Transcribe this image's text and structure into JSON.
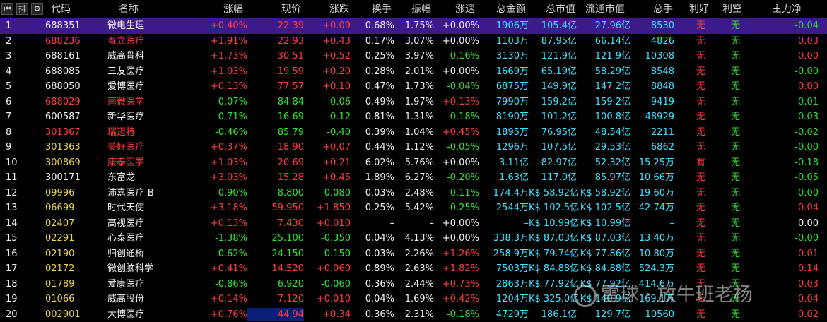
{
  "header": {
    "tools": [
      {
        "name": "first-page-icon",
        "glyph": "⏮"
      },
      {
        "name": "sort-icon",
        "glyph": "排"
      },
      {
        "name": "gear-icon",
        "glyph": "⚙"
      }
    ],
    "columns": [
      "代码",
      "名称",
      "涨幅",
      "现价",
      "涨跌",
      "换手",
      "振幅",
      "涨速",
      "总金额",
      "总市值",
      "流通市值",
      "总手",
      "利好",
      "利空",
      "主力净"
    ]
  },
  "colors": {
    "up": "#ff3c3c",
    "down": "#2fe02f",
    "selected_row": "#3c1a8c",
    "background": "#000000"
  },
  "rows": [
    {
      "idx": "1",
      "code": "688351",
      "code_color": "code-w",
      "name": "微电生理",
      "name_color": "name-w",
      "change_pct": "+0.40%",
      "dir": "red",
      "price": "22.39",
      "change": "+0.09",
      "turnover": "0.68%",
      "amplitude": "1.75%",
      "speed": "+0.00%",
      "speed_dir": "white",
      "amount": "1906万",
      "mktcap": "105.4亿",
      "float_cap": "27.96亿",
      "volume": "8530",
      "good": "无",
      "bad": "无",
      "net": "-0.04",
      "net_dir": "green",
      "selected": true
    },
    {
      "idx": "2",
      "code": "688236",
      "code_color": "code-r",
      "name": "春立医疗",
      "name_color": "name-r",
      "change_pct": "+1.91%",
      "dir": "red",
      "price": "22.93",
      "change": "+0.43",
      "turnover": "0.17%",
      "amplitude": "3.07%",
      "speed": "+0.00%",
      "speed_dir": "white",
      "amount": "1103万",
      "mktcap": "87.95亿",
      "float_cap": "66.14亿",
      "volume": "4826",
      "good": "无",
      "bad": "无",
      "net": "0.03",
      "net_dir": "red"
    },
    {
      "idx": "3",
      "code": "688161",
      "code_color": "code-w",
      "name": "威高骨科",
      "name_color": "name-w",
      "change_pct": "+1.73%",
      "dir": "red",
      "price": "30.51",
      "change": "+0.52",
      "turnover": "0.25%",
      "amplitude": "3.97%",
      "speed": "-0.16%",
      "speed_dir": "green",
      "amount": "3130万",
      "mktcap": "121.9亿",
      "float_cap": "121.9亿",
      "volume": "10308",
      "good": "无",
      "bad": "无",
      "net": "0.00",
      "net_dir": "red"
    },
    {
      "idx": "4",
      "code": "688085",
      "code_color": "code-w",
      "name": "三友医疗",
      "name_color": "name-w",
      "change_pct": "+1.03%",
      "dir": "red",
      "price": "19.59",
      "change": "+0.20",
      "turnover": "0.28%",
      "amplitude": "2.01%",
      "speed": "+0.00%",
      "speed_dir": "white",
      "amount": "1669万",
      "mktcap": "65.19亿",
      "float_cap": "58.29亿",
      "volume": "8548",
      "good": "无",
      "bad": "无",
      "net": "-0.00",
      "net_dir": "green"
    },
    {
      "idx": "5",
      "code": "688050",
      "code_color": "code-w",
      "name": "爱博医疗",
      "name_color": "name-w",
      "change_pct": "+0.13%",
      "dir": "red",
      "price": "77.57",
      "change": "+0.10",
      "turnover": "0.47%",
      "amplitude": "1.73%",
      "speed": "-0.04%",
      "speed_dir": "green",
      "amount": "6875万",
      "mktcap": "149.9亿",
      "float_cap": "147.2亿",
      "volume": "8848",
      "good": "无",
      "bad": "无",
      "net": "0.00",
      "net_dir": "red"
    },
    {
      "idx": "6",
      "code": "688029",
      "code_color": "code-r",
      "name": "南微医学",
      "name_color": "name-r",
      "change_pct": "-0.07%",
      "dir": "green",
      "price": "84.84",
      "change": "-0.06",
      "turnover": "0.49%",
      "amplitude": "1.97%",
      "speed": "+0.13%",
      "speed_dir": "red",
      "amount": "7990万",
      "mktcap": "159.2亿",
      "float_cap": "159.2亿",
      "volume": "9419",
      "good": "无",
      "bad": "无",
      "net": "-0.01",
      "net_dir": "green"
    },
    {
      "idx": "7",
      "code": "600587",
      "code_color": "code-w",
      "name": "新华医疗",
      "name_color": "name-w",
      "change_pct": "-0.71%",
      "dir": "green",
      "price": "16.69",
      "change": "-0.12",
      "turnover": "0.81%",
      "amplitude": "1.31%",
      "speed": "-0.18%",
      "speed_dir": "green",
      "amount": "8190万",
      "mktcap": "101.2亿",
      "float_cap": "100.8亿",
      "volume": "48929",
      "good": "无",
      "bad": "无",
      "net": "-0.03",
      "net_dir": "green"
    },
    {
      "idx": "8",
      "code": "301367",
      "code_color": "code-r",
      "name": "瑞迈特",
      "name_color": "name-r",
      "change_pct": "-0.46%",
      "dir": "green",
      "price": "85.79",
      "change": "-0.40",
      "turnover": "0.39%",
      "amplitude": "1.04%",
      "speed": "+0.45%",
      "speed_dir": "red",
      "amount": "1895万",
      "mktcap": "76.95亿",
      "float_cap": "48.54亿",
      "volume": "2211",
      "good": "无",
      "bad": "无",
      "net": "-0.02",
      "net_dir": "green"
    },
    {
      "idx": "9",
      "code": "301363",
      "code_color": "code-y",
      "name": "美好医疗",
      "name_color": "name-r",
      "change_pct": "+0.37%",
      "dir": "red",
      "price": "18.90",
      "change": "+0.07",
      "turnover": "0.44%",
      "amplitude": "1.12%",
      "speed": "-0.05%",
      "speed_dir": "green",
      "amount": "1296万",
      "mktcap": "107.5亿",
      "float_cap": "29.53亿",
      "volume": "6862",
      "good": "无",
      "bad": "无",
      "net": "-0.00",
      "net_dir": "green"
    },
    {
      "idx": "10",
      "code": "300869",
      "code_color": "code-y",
      "name": "康泰医学",
      "name_color": "name-r",
      "change_pct": "+1.03%",
      "dir": "red",
      "price": "20.69",
      "change": "+0.21",
      "turnover": "6.02%",
      "amplitude": "5.76%",
      "speed": "+0.00%",
      "speed_dir": "white",
      "amount": "3.11亿",
      "mktcap": "82.97亿",
      "float_cap": "52.32亿",
      "volume": "15.25万",
      "good": "有",
      "bad": "无",
      "net": "-0.18",
      "net_dir": "green"
    },
    {
      "idx": "11",
      "code": "300171",
      "code_color": "code-w",
      "name": "东富龙",
      "name_color": "name-w",
      "change_pct": "+3.03%",
      "dir": "red",
      "price": "15.28",
      "change": "+0.45",
      "turnover": "1.89%",
      "amplitude": "6.27%",
      "speed": "-0.20%",
      "speed_dir": "green",
      "amount": "1.63亿",
      "mktcap": "117.0亿",
      "float_cap": "85.97亿",
      "volume": "10.66万",
      "good": "无",
      "bad": "无",
      "net": "-0.05",
      "net_dir": "green"
    },
    {
      "idx": "12",
      "code": "09996",
      "code_color": "code-y",
      "name": "沛嘉医疗-B",
      "name_color": "name-w",
      "change_pct": "-0.90%",
      "dir": "green",
      "price": "8.800",
      "change": "-0.080",
      "turnover": "0.03%",
      "amplitude": "2.48%",
      "speed": "-0.11%",
      "speed_dir": "green",
      "amount": "174.4万",
      "mktcap": "K$ 58.92亿",
      "float_cap": "K$ 58.92亿",
      "volume": "19.60万",
      "good": "无",
      "bad": "无",
      "net": "-0.00",
      "net_dir": "green"
    },
    {
      "idx": "13",
      "code": "06699",
      "code_color": "code-y",
      "name": "时代天使",
      "name_color": "name-w",
      "change_pct": "+3.18%",
      "dir": "red",
      "price": "59.950",
      "change": "+1.850",
      "turnover": "0.25%",
      "amplitude": "5.42%",
      "speed": "-0.25%",
      "speed_dir": "green",
      "amount": "2544万",
      "mktcap": "K$ 102.5亿",
      "float_cap": "K$ 102.5亿",
      "volume": "42.74万",
      "good": "无",
      "bad": "无",
      "net": "0.04",
      "net_dir": "red"
    },
    {
      "idx": "14",
      "code": "02407",
      "code_color": "code-y",
      "name": "高视医疗",
      "name_color": "name-w",
      "change_pct": "+0.13%",
      "dir": "red",
      "price": "7.430",
      "change": "+0.010",
      "turnover": "–",
      "amplitude": "–",
      "speed": "+0.00%",
      "speed_dir": "white",
      "amount": "–",
      "mktcap": "K$ 10.99亿",
      "float_cap": "K$ 10.99亿",
      "volume": "–",
      "good": "无",
      "bad": "无",
      "net": "0.00",
      "net_dir": "white"
    },
    {
      "idx": "15",
      "code": "02291",
      "code_color": "code-y",
      "name": "心泰医疗",
      "name_color": "name-w",
      "change_pct": "-1.38%",
      "dir": "green",
      "price": "25.100",
      "change": "-0.350",
      "turnover": "0.04%",
      "amplitude": "4.13%",
      "speed": "+0.00%",
      "speed_dir": "white",
      "amount": "338.3万",
      "mktcap": "K$ 87.03亿",
      "float_cap": "K$ 87.03亿",
      "volume": "13.40万",
      "good": "无",
      "bad": "无",
      "net": "-0.00",
      "net_dir": "green"
    },
    {
      "idx": "16",
      "code": "02190",
      "code_color": "code-y",
      "name": "归创通桥",
      "name_color": "name-w",
      "change_pct": "-0.62%",
      "dir": "green",
      "price": "24.150",
      "change": "-0.150",
      "turnover": "0.03%",
      "amplitude": "2.26%",
      "speed": "+1.26%",
      "speed_dir": "red",
      "amount": "258.9万",
      "mktcap": "K$ 79.74亿",
      "float_cap": "K$ 77.86亿",
      "volume": "10.80万",
      "good": "无",
      "bad": "无",
      "net": "0.01",
      "net_dir": "red"
    },
    {
      "idx": "17",
      "code": "02172",
      "code_color": "code-y",
      "name": "微创脑科学",
      "name_color": "name-w",
      "change_pct": "+0.41%",
      "dir": "red",
      "price": "14.520",
      "change": "+0.060",
      "turnover": "0.89%",
      "amplitude": "2.63%",
      "speed": "+1.82%",
      "speed_dir": "red",
      "amount": "7503万",
      "mktcap": "K$ 84.88亿",
      "float_cap": "K$ 84.88亿",
      "volume": "524.3万",
      "good": "无",
      "bad": "无",
      "net": "0.14",
      "net_dir": "red"
    },
    {
      "idx": "18",
      "code": "01789",
      "code_color": "code-y",
      "name": "爱康医疗",
      "name_color": "name-w",
      "change_pct": "-0.86%",
      "dir": "green",
      "price": "6.920",
      "change": "-0.060",
      "turnover": "0.36%",
      "amplitude": "2.44%",
      "speed": "+0.73%",
      "speed_dir": "red",
      "amount": "2863万",
      "mktcap": "K$ 77.92亿",
      "float_cap": "K$ 77.92亿",
      "volume": "414.6万",
      "good": "无",
      "bad": "无",
      "net": "0.03",
      "net_dir": "red"
    },
    {
      "idx": "19",
      "code": "01066",
      "code_color": "code-y",
      "name": "威高股份",
      "name_color": "name-w",
      "change_pct": "+0.14%",
      "dir": "red",
      "price": "7.120",
      "change": "+0.010",
      "turnover": "0.04%",
      "amplitude": "1.69%",
      "speed": "+0.42%",
      "speed_dir": "red",
      "amount": "1204万",
      "mktcap": "K$ 325.0亿",
      "float_cap": "K$ 140.9亿",
      "volume": "169.1万",
      "good": "无",
      "bad": "无",
      "net": "0.04",
      "net_dir": "red"
    },
    {
      "idx": "20",
      "code": "002901",
      "code_color": "code-y",
      "name": "大博医疗",
      "name_color": "name-w",
      "change_pct": "+0.76%",
      "dir": "red",
      "price": "44.94",
      "change": "+0.34",
      "turnover": "0.36%",
      "amplitude": "2.31%",
      "speed": "-0.18%",
      "speed_dir": "green",
      "amount": "4729万",
      "mktcap": "186.1亿",
      "float_cap": "129.7亿",
      "volume": "10560",
      "good": "无",
      "bad": "无",
      "net": "0.02",
      "net_dir": "red",
      "price_highlight": true
    }
  ],
  "watermark": {
    "text": "雪球 · 放牛班老杨"
  }
}
